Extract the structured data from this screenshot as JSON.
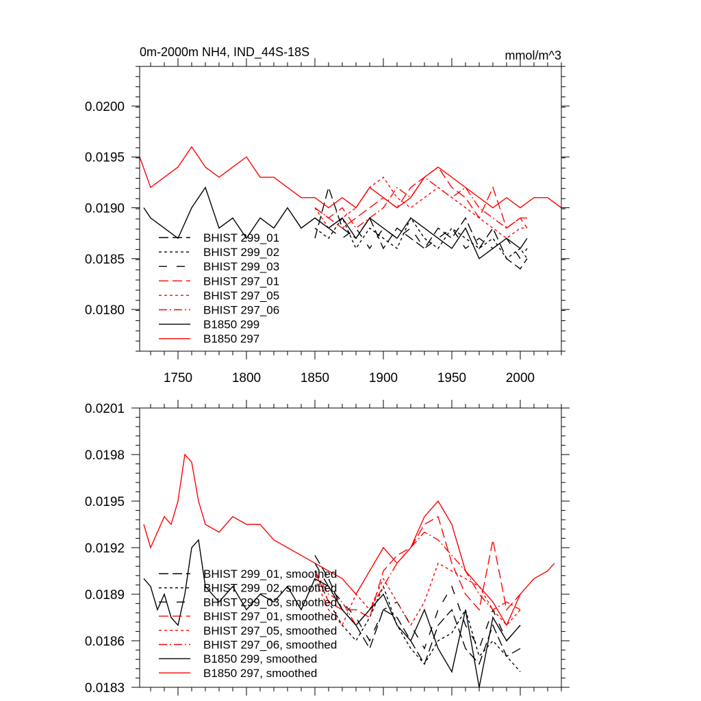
{
  "chart_data": [
    {
      "type": "line",
      "title": "0m-2000m NH4, IND_44S-18S",
      "units": "mmol/m^3",
      "xlabel": "",
      "ylabel": "",
      "xlim": [
        1722,
        2030
      ],
      "ylim": [
        0.01759,
        0.02039
      ],
      "xticks": [
        1750,
        1800,
        1850,
        1900,
        1950,
        2000
      ],
      "xtick_labels": [
        "1750",
        "1800",
        "1850",
        "1900",
        "1950",
        "2000"
      ],
      "yticks": [
        0.018,
        0.0185,
        0.019,
        0.0195,
        0.02
      ],
      "ytick_labels": [
        "0.0180",
        "0.0185",
        "0.0190",
        "0.0195",
        "0.0200"
      ],
      "grid": false,
      "legend_position": "lower-left",
      "series": [
        {
          "name": "BHIST 299_01",
          "color": "#000000",
          "dash": "long-dash",
          "x": [
            1850,
            1860,
            1870,
            1880,
            1890,
            1900,
            1910,
            1920,
            1930,
            1940,
            1950,
            1960,
            1970,
            1980,
            1990,
            2000,
            2005
          ],
          "y": [
            0.0187,
            0.0192,
            0.0188,
            0.0187,
            0.0189,
            0.0186,
            0.0188,
            0.0187,
            0.0186,
            0.0188,
            0.0187,
            0.0189,
            0.0186,
            0.0188,
            0.0185,
            0.0184,
            0.0185
          ]
        },
        {
          "name": "BHIST 299_02",
          "color": "#000000",
          "dash": "short-dash",
          "x": [
            1850,
            1860,
            1870,
            1880,
            1890,
            1900,
            1910,
            1920,
            1930,
            1940,
            1950,
            1960,
            1970,
            1980,
            1990,
            2000,
            2005
          ],
          "y": [
            0.0188,
            0.0187,
            0.0189,
            0.0186,
            0.0188,
            0.0187,
            0.0186,
            0.0189,
            0.0187,
            0.0186,
            0.0188,
            0.0187,
            0.0186,
            0.0187,
            0.0185,
            0.0186,
            0.0185
          ]
        },
        {
          "name": "BHIST 299_03",
          "color": "#000000",
          "dash": "dash-gap",
          "x": [
            1850,
            1860,
            1870,
            1880,
            1890,
            1900,
            1910,
            1920,
            1930,
            1940,
            1950,
            1960,
            1970,
            1980,
            1990,
            2000,
            2005
          ],
          "y": [
            0.0189,
            0.0188,
            0.0187,
            0.0188,
            0.0186,
            0.0188,
            0.0187,
            0.0188,
            0.0186,
            0.0187,
            0.0188,
            0.0186,
            0.0187,
            0.0186,
            0.0187,
            0.0185,
            0.0186
          ]
        },
        {
          "name": "BHIST 297_01",
          "color": "#ff0000",
          "dash": "long-dash",
          "x": [
            1850,
            1860,
            1870,
            1880,
            1890,
            1900,
            1910,
            1920,
            1930,
            1940,
            1950,
            1960,
            1970,
            1980,
            1990,
            2000,
            2005
          ],
          "y": [
            0.019,
            0.0189,
            0.0188,
            0.0189,
            0.019,
            0.0191,
            0.019,
            0.0192,
            0.0193,
            0.0194,
            0.0192,
            0.0191,
            0.0189,
            0.0192,
            0.0188,
            0.0189,
            0.0188
          ]
        },
        {
          "name": "BHIST 297_05",
          "color": "#ff0000",
          "dash": "short-dash",
          "x": [
            1850,
            1860,
            1870,
            1880,
            1890,
            1900,
            1910,
            1920,
            1930,
            1940,
            1950,
            1960,
            1970,
            1980,
            1990,
            2000,
            2005
          ],
          "y": [
            0.019,
            0.0188,
            0.0189,
            0.019,
            0.0192,
            0.0193,
            0.0191,
            0.019,
            0.0191,
            0.0192,
            0.0191,
            0.019,
            0.0189,
            0.0188,
            0.0187,
            0.0188,
            0.0188
          ]
        },
        {
          "name": "BHIST 297_06",
          "color": "#ff0000",
          "dash": "dash-dot",
          "x": [
            1850,
            1860,
            1870,
            1880,
            1890,
            1900,
            1910,
            1920,
            1930,
            1940,
            1950,
            1960,
            1970,
            1980,
            1990,
            2000,
            2005
          ],
          "y": [
            0.019,
            0.0189,
            0.019,
            0.0188,
            0.0189,
            0.019,
            0.0192,
            0.0191,
            0.0193,
            0.0192,
            0.0191,
            0.0192,
            0.019,
            0.0189,
            0.0188,
            0.0189,
            0.0189
          ]
        },
        {
          "name": "B1850 299",
          "color": "#000000",
          "dash": "solid",
          "x": [
            1725,
            1730,
            1740,
            1750,
            1760,
            1770,
            1780,
            1790,
            1800,
            1810,
            1820,
            1830,
            1840,
            1850,
            1860,
            1870,
            1880,
            1890,
            1900,
            1910,
            1920,
            1930,
            1940,
            1950,
            1960,
            1970,
            1980,
            1990,
            2000,
            2005
          ],
          "y": [
            0.019,
            0.0189,
            0.0188,
            0.0187,
            0.019,
            0.0192,
            0.0188,
            0.0189,
            0.0187,
            0.0189,
            0.0188,
            0.019,
            0.0188,
            0.0189,
            0.0188,
            0.0189,
            0.0187,
            0.0189,
            0.0188,
            0.0187,
            0.0189,
            0.0188,
            0.0187,
            0.0186,
            0.0188,
            0.0185,
            0.0186,
            0.0187,
            0.0186,
            0.0187
          ]
        },
        {
          "name": "B1850 297",
          "color": "#ff0000",
          "dash": "solid",
          "x": [
            1722,
            1730,
            1740,
            1750,
            1760,
            1770,
            1780,
            1790,
            1800,
            1810,
            1820,
            1830,
            1840,
            1850,
            1860,
            1870,
            1880,
            1890,
            1900,
            1910,
            1920,
            1930,
            1940,
            1950,
            1960,
            1970,
            1980,
            1990,
            2000,
            2010,
            2020,
            2030
          ],
          "y": [
            0.0195,
            0.0192,
            0.0193,
            0.0194,
            0.0196,
            0.0194,
            0.0193,
            0.0194,
            0.0195,
            0.0193,
            0.0193,
            0.0192,
            0.0191,
            0.0191,
            0.019,
            0.0191,
            0.019,
            0.0192,
            0.0191,
            0.019,
            0.0191,
            0.0193,
            0.0194,
            0.0193,
            0.0192,
            0.0191,
            0.019,
            0.0191,
            0.019,
            0.0191,
            0.0191,
            0.019
          ]
        }
      ]
    },
    {
      "type": "line",
      "title": "",
      "xlabel": "",
      "ylabel": "",
      "xlim": [
        1722,
        2030
      ],
      "ylim": [
        0.0183,
        0.0201
      ],
      "xticks": [
        1750,
        1800,
        1850,
        1900,
        1950,
        2000
      ],
      "yticks": [
        0.0183,
        0.0186,
        0.0189,
        0.0192,
        0.0195,
        0.0198,
        0.0201
      ],
      "ytick_labels": [
        "0.0183",
        "0.0186",
        "0.0189",
        "0.0192",
        "0.0195",
        "0.0198",
        "0.0201"
      ],
      "grid": false,
      "legend_position": "lower-left",
      "series": [
        {
          "name": "BHIST 299_01, smoothed",
          "color": "#000000",
          "dash": "long-dash",
          "x": [
            1850,
            1860,
            1870,
            1880,
            1890,
            1900,
            1910,
            1920,
            1930,
            1940,
            1950,
            1960,
            1970,
            1980,
            1990,
            2000
          ],
          "y": [
            0.01915,
            0.019,
            0.0188,
            0.0187,
            0.01855,
            0.0188,
            0.01875,
            0.0186,
            0.01845,
            0.0187,
            0.0188,
            0.01855,
            0.01845,
            0.0187,
            0.0185,
            0.01855
          ]
        },
        {
          "name": "BHIST 299_02, smoothed",
          "color": "#000000",
          "dash": "short-dash",
          "x": [
            1850,
            1860,
            1870,
            1880,
            1890,
            1900,
            1910,
            1920,
            1930,
            1940,
            1950,
            1960,
            1970,
            1980,
            1990,
            2000
          ],
          "y": [
            0.01905,
            0.01885,
            0.0187,
            0.0186,
            0.01875,
            0.01895,
            0.0187,
            0.01855,
            0.01845,
            0.0186,
            0.01865,
            0.0188,
            0.0185,
            0.0186,
            0.0185,
            0.0184
          ]
        },
        {
          "name": "BHIST 299_03, smoothed",
          "color": "#000000",
          "dash": "dash-gap",
          "x": [
            1850,
            1860,
            1870,
            1880,
            1890,
            1900,
            1910,
            1920,
            1930,
            1940,
            1950,
            1960,
            1970,
            1980,
            1990,
            2000
          ],
          "y": [
            0.0191,
            0.01895,
            0.01885,
            0.01875,
            0.0186,
            0.0188,
            0.01885,
            0.0187,
            0.01855,
            0.0188,
            0.01895,
            0.0187,
            0.01855,
            0.0188,
            0.0186,
            0.0187
          ]
        },
        {
          "name": "BHIST 297_01, smoothed",
          "color": "#ff0000",
          "dash": "long-dash",
          "x": [
            1850,
            1860,
            1870,
            1880,
            1890,
            1900,
            1910,
            1920,
            1930,
            1940,
            1950,
            1960,
            1970,
            1980,
            1990,
            2000
          ],
          "y": [
            0.01905,
            0.01885,
            0.0188,
            0.0188,
            0.01875,
            0.01905,
            0.01915,
            0.0192,
            0.01935,
            0.0194,
            0.0191,
            0.0189,
            0.0188,
            0.01925,
            0.0188,
            0.0189
          ]
        },
        {
          "name": "BHIST 297_05, smoothed",
          "color": "#ff0000",
          "dash": "short-dash",
          "x": [
            1850,
            1860,
            1870,
            1880,
            1890,
            1900,
            1910,
            1920,
            1930,
            1940,
            1950,
            1960,
            1970,
            1980,
            1990,
            2000
          ],
          "y": [
            0.019,
            0.0188,
            0.0187,
            0.0189,
            0.0188,
            0.019,
            0.01885,
            0.0187,
            0.01885,
            0.0191,
            0.01905,
            0.019,
            0.01895,
            0.0188,
            0.0187,
            0.0188
          ]
        },
        {
          "name": "BHIST 297_06, smoothed",
          "color": "#ff0000",
          "dash": "dash-dot",
          "x": [
            1850,
            1860,
            1870,
            1880,
            1890,
            1900,
            1910,
            1920,
            1930,
            1940,
            1950,
            1960,
            1970,
            1980,
            1990,
            2000
          ],
          "y": [
            0.01905,
            0.0189,
            0.01885,
            0.0187,
            0.0188,
            0.01895,
            0.0191,
            0.0192,
            0.0193,
            0.01925,
            0.01915,
            0.01905,
            0.0189,
            0.0188,
            0.01885,
            0.0188
          ]
        },
        {
          "name": "B1850 299, smoothed",
          "color": "#000000",
          "dash": "solid",
          "x": [
            1725,
            1730,
            1735,
            1740,
            1745,
            1750,
            1755,
            1760,
            1765,
            1770,
            1780,
            1790,
            1800,
            1810,
            1820,
            1830,
            1840,
            1850,
            1860,
            1870,
            1880,
            1890,
            1900,
            1910,
            1920,
            1930,
            1940,
            1950,
            1960,
            1970,
            1980,
            1990,
            2000
          ],
          "y": [
            0.019,
            0.01895,
            0.0188,
            0.0189,
            0.01875,
            0.0187,
            0.0189,
            0.0192,
            0.01925,
            0.01895,
            0.01885,
            0.01895,
            0.0188,
            0.0189,
            0.01885,
            0.01895,
            0.0188,
            0.019,
            0.01895,
            0.0188,
            0.0187,
            0.0188,
            0.0189,
            0.0187,
            0.0186,
            0.0188,
            0.01855,
            0.0184,
            0.0188,
            0.0183,
            0.01875,
            0.0186,
            0.0187
          ]
        },
        {
          "name": "B1850 297, smoothed",
          "color": "#ff0000",
          "dash": "solid",
          "x": [
            1725,
            1730,
            1735,
            1740,
            1745,
            1750,
            1755,
            1760,
            1765,
            1770,
            1780,
            1790,
            1800,
            1810,
            1820,
            1830,
            1840,
            1850,
            1860,
            1870,
            1880,
            1890,
            1900,
            1910,
            1920,
            1930,
            1940,
            1950,
            1960,
            1970,
            1980,
            1990,
            2000,
            2010,
            2020,
            2025
          ],
          "y": [
            0.01935,
            0.0192,
            0.0193,
            0.0194,
            0.01935,
            0.0195,
            0.0198,
            0.01975,
            0.0195,
            0.01935,
            0.0193,
            0.0194,
            0.01935,
            0.01935,
            0.01925,
            0.0192,
            0.01915,
            0.0191,
            0.01905,
            0.019,
            0.0189,
            0.01905,
            0.0192,
            0.0191,
            0.0192,
            0.0194,
            0.0195,
            0.01935,
            0.01905,
            0.01895,
            0.01885,
            0.0187,
            0.0189,
            0.019,
            0.01905,
            0.0191
          ]
        }
      ]
    }
  ]
}
